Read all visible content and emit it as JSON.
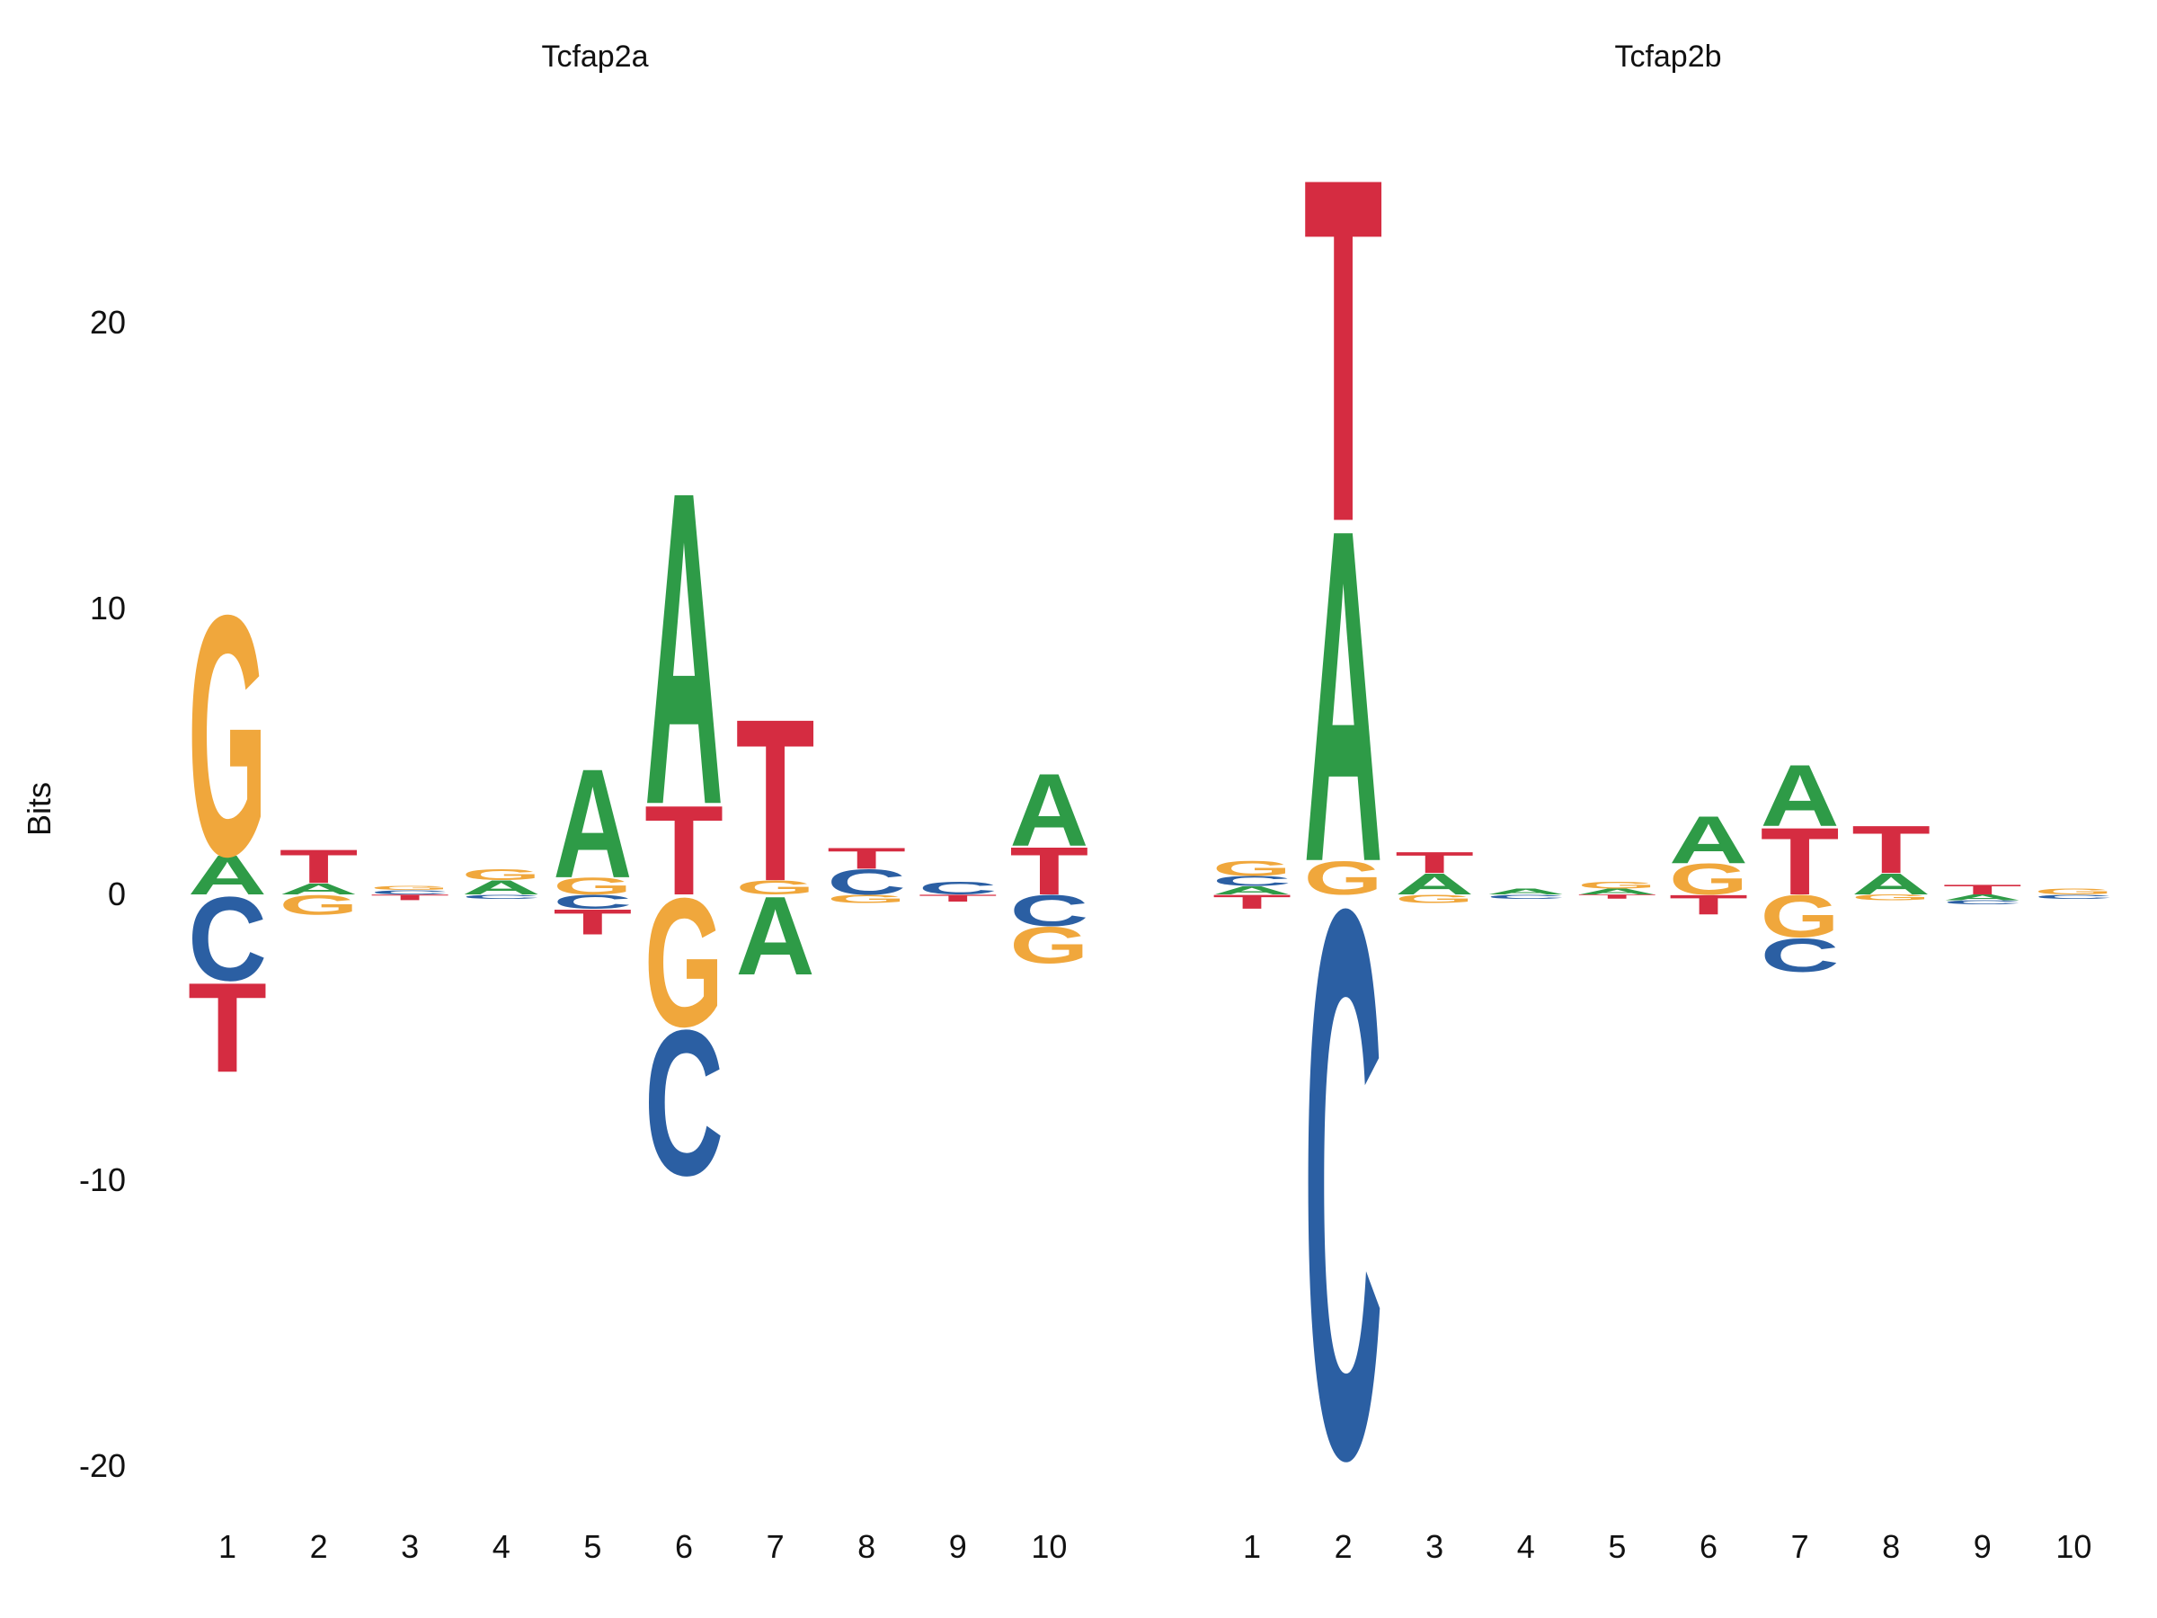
{
  "chart_data": {
    "type": "sequence-logo",
    "ylabel": "Bits",
    "ylim": [
      -20,
      26
    ],
    "yticks": [
      20,
      10,
      0,
      -10,
      -20
    ],
    "xticks": [
      1,
      2,
      3,
      4,
      5,
      6,
      7,
      8,
      9,
      10
    ],
    "grid": false,
    "legend": "none",
    "colors": {
      "A": "#2E9B47",
      "C": "#2B5FA3",
      "G": "#F0A73C",
      "T": "#D52C41"
    },
    "units": "bits",
    "plots": [
      {
        "title": "Tcfap2a",
        "positions": [
          {
            "pos": 1,
            "above": [
              {
                "l": "A",
                "b": 1.4
              },
              {
                "l": "G",
                "b": 8.6
              }
            ],
            "below": [
              {
                "l": "C",
                "b": 3.0
              },
              {
                "l": "T",
                "b": 3.2
              }
            ]
          },
          {
            "pos": 2,
            "above": [
              {
                "l": "A",
                "b": 0.4
              },
              {
                "l": "T",
                "b": 1.2
              }
            ],
            "below": [
              {
                "l": "G",
                "b": 0.7
              }
            ]
          },
          {
            "pos": 3,
            "above": [
              {
                "l": "C",
                "b": 0.15
              },
              {
                "l": "G",
                "b": 0.15
              }
            ],
            "below": [
              {
                "l": "T",
                "b": 0.2
              }
            ]
          },
          {
            "pos": 4,
            "above": [
              {
                "l": "A",
                "b": 0.5
              },
              {
                "l": "G",
                "b": 0.4
              }
            ],
            "below": [
              {
                "l": "C",
                "b": 0.15
              }
            ]
          },
          {
            "pos": 5,
            "above": [
              {
                "l": "G",
                "b": 0.6
              },
              {
                "l": "A",
                "b": 3.9
              }
            ],
            "below": [
              {
                "l": "C",
                "b": 0.5
              },
              {
                "l": "T",
                "b": 0.9
              }
            ]
          },
          {
            "pos": 6,
            "above": [
              {
                "l": "T",
                "b": 3.2
              },
              {
                "l": "A",
                "b": 11.2
              }
            ],
            "below": [
              {
                "l": "G",
                "b": 4.6
              },
              {
                "l": "C",
                "b": 5.2
              }
            ]
          },
          {
            "pos": 7,
            "above": [
              {
                "l": "G",
                "b": 0.5
              },
              {
                "l": "T",
                "b": 5.8
              }
            ],
            "below": [
              {
                "l": "A",
                "b": 2.8
              }
            ]
          },
          {
            "pos": 8,
            "above": [
              {
                "l": "C",
                "b": 0.9
              },
              {
                "l": "T",
                "b": 0.75
              }
            ],
            "below": [
              {
                "l": "G",
                "b": 0.3
              }
            ]
          },
          {
            "pos": 9,
            "above": [
              {
                "l": "C",
                "b": 0.45
              }
            ],
            "below": [
              {
                "l": "T",
                "b": 0.25
              }
            ]
          },
          {
            "pos": 10,
            "above": [
              {
                "l": "T",
                "b": 1.7
              },
              {
                "l": "A",
                "b": 2.6
              }
            ],
            "below": [
              {
                "l": "C",
                "b": 1.1
              },
              {
                "l": "G",
                "b": 1.3
              }
            ]
          }
        ]
      },
      {
        "title": "Tcfap2b",
        "positions": [
          {
            "pos": 1,
            "above": [
              {
                "l": "A",
                "b": 0.3
              },
              {
                "l": "C",
                "b": 0.35
              },
              {
                "l": "G",
                "b": 0.55
              }
            ],
            "below": [
              {
                "l": "T",
                "b": 0.5
              }
            ]
          },
          {
            "pos": 2,
            "above": [
              {
                "l": "G",
                "b": 1.2
              },
              {
                "l": "A",
                "b": 11.9
              },
              {
                "l": "T",
                "b": 12.3
              }
            ],
            "below": [
              {
                "l": "C",
                "b": 19.6
              }
            ]
          },
          {
            "pos": 3,
            "above": [
              {
                "l": "A",
                "b": 0.75
              },
              {
                "l": "T",
                "b": 0.75
              }
            ],
            "below": [
              {
                "l": "G",
                "b": 0.3
              }
            ]
          },
          {
            "pos": 4,
            "above": [
              {
                "l": "A",
                "b": 0.2
              }
            ],
            "below": [
              {
                "l": "C",
                "b": 0.15
              }
            ]
          },
          {
            "pos": 5,
            "above": [
              {
                "l": "A",
                "b": 0.2
              },
              {
                "l": "G",
                "b": 0.25
              }
            ],
            "below": [
              {
                "l": "T",
                "b": 0.15
              }
            ]
          },
          {
            "pos": 6,
            "above": [
              {
                "l": "G",
                "b": 1.1
              },
              {
                "l": "A",
                "b": 1.7
              }
            ],
            "below": [
              {
                "l": "T",
                "b": 0.7
              }
            ]
          },
          {
            "pos": 7,
            "above": [
              {
                "l": "T",
                "b": 2.4
              },
              {
                "l": "A",
                "b": 2.2
              }
            ],
            "below": [
              {
                "l": "G",
                "b": 1.5
              },
              {
                "l": "C",
                "b": 1.2
              }
            ]
          },
          {
            "pos": 8,
            "above": [
              {
                "l": "A",
                "b": 0.75
              },
              {
                "l": "T",
                "b": 1.7
              }
            ],
            "below": [
              {
                "l": "G",
                "b": 0.2
              }
            ]
          },
          {
            "pos": 9,
            "above": [
              {
                "l": "T",
                "b": 0.35
              }
            ],
            "below": [
              {
                "l": "A",
                "b": 0.2
              },
              {
                "l": "C",
                "b": 0.15
              }
            ]
          },
          {
            "pos": 10,
            "above": [
              {
                "l": "G",
                "b": 0.2
              }
            ],
            "below": [
              {
                "l": "C",
                "b": 0.15
              }
            ]
          }
        ]
      }
    ]
  }
}
